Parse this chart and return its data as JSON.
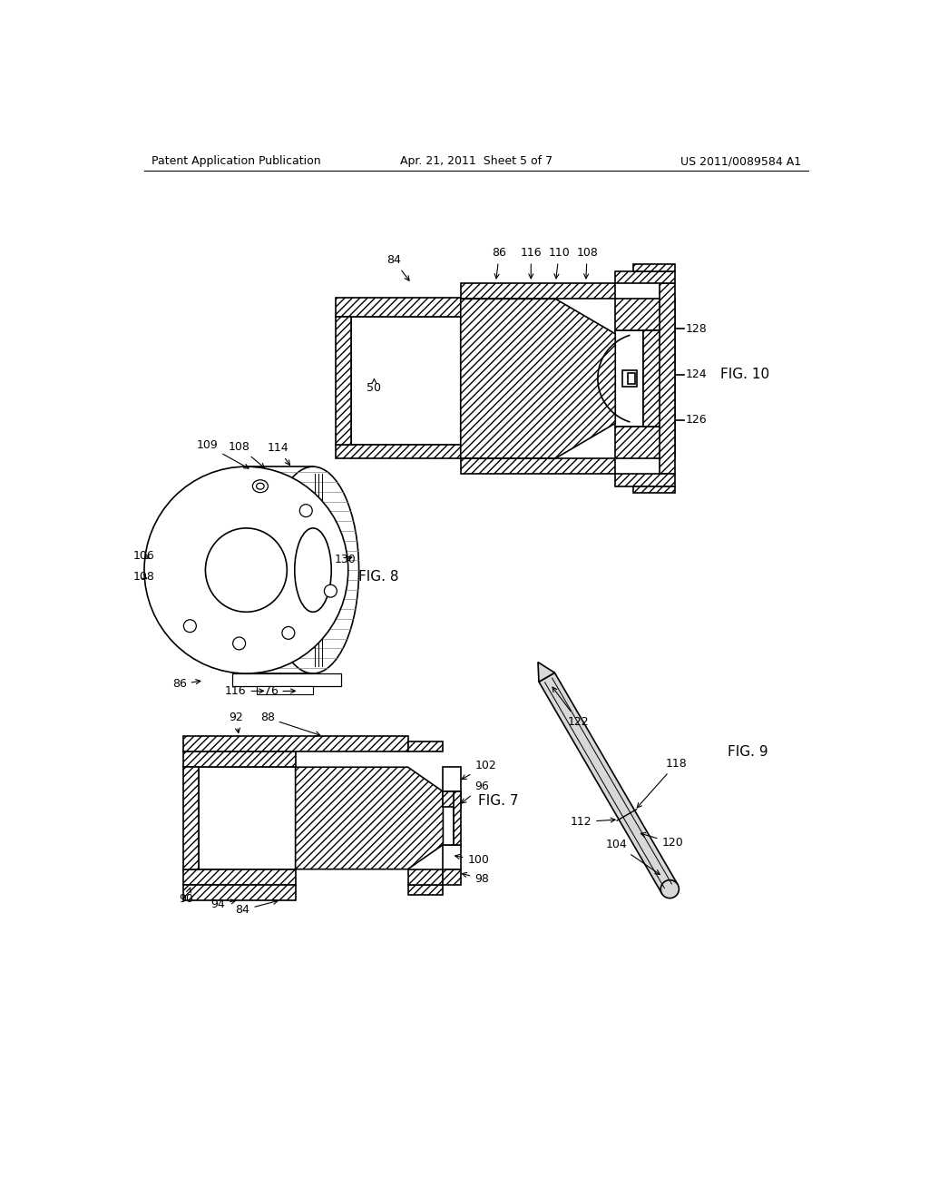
{
  "background_color": "#ffffff",
  "header_left": "Patent Application Publication",
  "header_center": "Apr. 21, 2011  Sheet 5 of 7",
  "header_right": "US 2011/0089584 A1",
  "fig10_label": "FIG. 10",
  "fig8_label": "FIG. 8",
  "fig7_label": "FIG. 7",
  "fig9_label": "FIG. 9",
  "text_color": "#000000",
  "hatch_pattern": "////",
  "lw_main": 1.2,
  "lw_thin": 0.8,
  "fontsize_label": 9,
  "fontsize_fig": 11
}
